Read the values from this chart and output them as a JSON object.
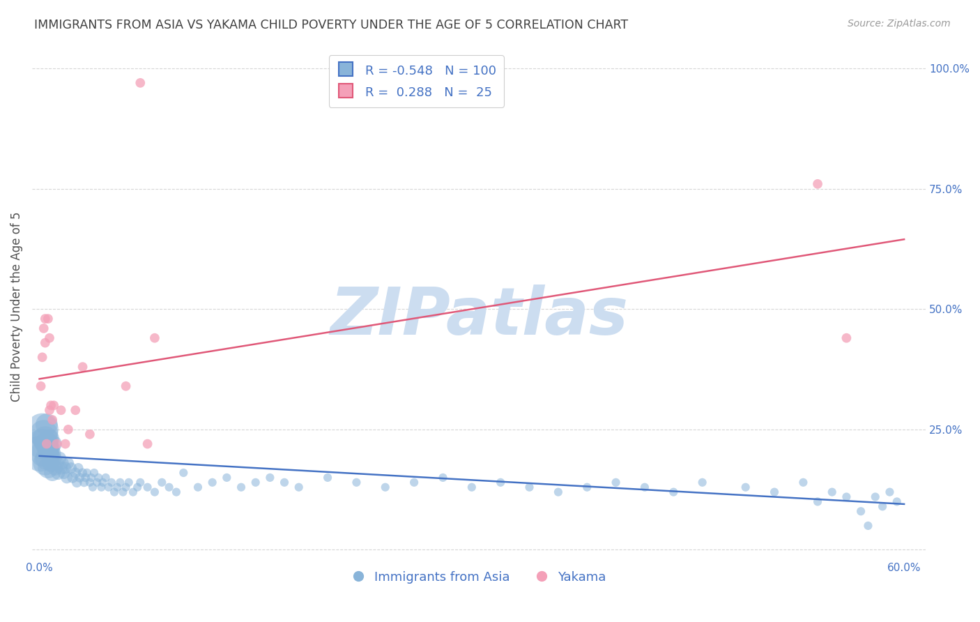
{
  "title": "IMMIGRANTS FROM ASIA VS YAKAMA CHILD POVERTY UNDER THE AGE OF 5 CORRELATION CHART",
  "source": "Source: ZipAtlas.com",
  "ylabel": "Child Poverty Under the Age of 5",
  "xlim": [
    -0.005,
    0.615
  ],
  "ylim": [
    -0.02,
    1.03
  ],
  "ytick_vals": [
    0.0,
    0.25,
    0.5,
    0.75,
    1.0
  ],
  "ytick_labels": [
    "",
    "25.0%",
    "50.0%",
    "75.0%",
    "100.0%"
  ],
  "xtick_vals": [
    0.0,
    0.1,
    0.2,
    0.3,
    0.4,
    0.5,
    0.6
  ],
  "xtick_labels": [
    "0.0%",
    "",
    "",
    "",
    "",
    "",
    "60.0%"
  ],
  "blue_R": -0.548,
  "blue_N": 100,
  "pink_R": 0.288,
  "pink_N": 25,
  "blue_color": "#89b4d9",
  "pink_color": "#f4a0b8",
  "blue_line_color": "#4472c4",
  "pink_line_color": "#e05878",
  "legend_label_blue": "Immigrants from Asia",
  "legend_label_pink": "Yakama",
  "watermark": "ZIPatlas",
  "watermark_color": "#ccddf0",
  "background_color": "#ffffff",
  "title_color": "#404040",
  "axis_label_color": "#505050",
  "tick_color": "#4472c4",
  "grid_color": "#cccccc",
  "blue_line_x": [
    0.0,
    0.6
  ],
  "blue_line_y": [
    0.195,
    0.095
  ],
  "pink_line_x": [
    0.0,
    0.6
  ],
  "pink_line_y": [
    0.355,
    0.645
  ],
  "blue_scatter_x": [
    0.001,
    0.002,
    0.002,
    0.003,
    0.003,
    0.004,
    0.004,
    0.005,
    0.005,
    0.005,
    0.006,
    0.006,
    0.007,
    0.007,
    0.008,
    0.008,
    0.009,
    0.009,
    0.01,
    0.01,
    0.011,
    0.012,
    0.013,
    0.014,
    0.015,
    0.016,
    0.017,
    0.018,
    0.019,
    0.02,
    0.022,
    0.023,
    0.025,
    0.026,
    0.027,
    0.028,
    0.03,
    0.031,
    0.032,
    0.033,
    0.035,
    0.036,
    0.037,
    0.038,
    0.04,
    0.041,
    0.043,
    0.044,
    0.046,
    0.048,
    0.05,
    0.052,
    0.054,
    0.056,
    0.058,
    0.06,
    0.062,
    0.065,
    0.068,
    0.07,
    0.075,
    0.08,
    0.085,
    0.09,
    0.095,
    0.1,
    0.11,
    0.12,
    0.13,
    0.14,
    0.15,
    0.16,
    0.17,
    0.18,
    0.2,
    0.22,
    0.24,
    0.26,
    0.28,
    0.3,
    0.32,
    0.34,
    0.36,
    0.38,
    0.4,
    0.42,
    0.44,
    0.46,
    0.49,
    0.51,
    0.53,
    0.54,
    0.55,
    0.56,
    0.57,
    0.575,
    0.58,
    0.585,
    0.59,
    0.595
  ],
  "blue_scatter_y": [
    0.2,
    0.25,
    0.22,
    0.24,
    0.2,
    0.23,
    0.18,
    0.22,
    0.19,
    0.26,
    0.21,
    0.17,
    0.23,
    0.2,
    0.21,
    0.18,
    0.2,
    0.16,
    0.22,
    0.19,
    0.17,
    0.18,
    0.16,
    0.19,
    0.17,
    0.18,
    0.16,
    0.17,
    0.15,
    0.18,
    0.17,
    0.15,
    0.16,
    0.14,
    0.17,
    0.15,
    0.16,
    0.14,
    0.15,
    0.16,
    0.14,
    0.15,
    0.13,
    0.16,
    0.14,
    0.15,
    0.13,
    0.14,
    0.15,
    0.13,
    0.14,
    0.12,
    0.13,
    0.14,
    0.12,
    0.13,
    0.14,
    0.12,
    0.13,
    0.14,
    0.13,
    0.12,
    0.14,
    0.13,
    0.12,
    0.16,
    0.13,
    0.14,
    0.15,
    0.13,
    0.14,
    0.15,
    0.14,
    0.13,
    0.15,
    0.14,
    0.13,
    0.14,
    0.15,
    0.13,
    0.14,
    0.13,
    0.12,
    0.13,
    0.14,
    0.13,
    0.12,
    0.14,
    0.13,
    0.12,
    0.14,
    0.1,
    0.12,
    0.11,
    0.08,
    0.05,
    0.11,
    0.09,
    0.12,
    0.1
  ],
  "blue_scatter_size": [
    400,
    320,
    280,
    250,
    220,
    200,
    180,
    170,
    160,
    150,
    140,
    130,
    120,
    110,
    100,
    95,
    90,
    85,
    80,
    75,
    70,
    65,
    60,
    55,
    52,
    50,
    48,
    45,
    43,
    40,
    38,
    36,
    34,
    32,
    30,
    28,
    26,
    25,
    24,
    23,
    22,
    22,
    22,
    22,
    22,
    22,
    22,
    22,
    22,
    22,
    22,
    22,
    22,
    22,
    22,
    22,
    22,
    22,
    22,
    22,
    22,
    22,
    22,
    22,
    22,
    22,
    22,
    22,
    22,
    22,
    22,
    22,
    22,
    22,
    22,
    22,
    22,
    22,
    22,
    22,
    22,
    22,
    22,
    22,
    22,
    22,
    22,
    22,
    22,
    22,
    22,
    22,
    22,
    22,
    22,
    22,
    22,
    22,
    22,
    22
  ],
  "pink_scatter_x": [
    0.001,
    0.002,
    0.003,
    0.004,
    0.004,
    0.005,
    0.006,
    0.007,
    0.007,
    0.008,
    0.009,
    0.01,
    0.012,
    0.015,
    0.018,
    0.02,
    0.025,
    0.03,
    0.035,
    0.06,
    0.07,
    0.075,
    0.08,
    0.54,
    0.56
  ],
  "pink_scatter_y": [
    0.34,
    0.4,
    0.46,
    0.48,
    0.43,
    0.22,
    0.48,
    0.44,
    0.29,
    0.3,
    0.27,
    0.3,
    0.22,
    0.29,
    0.22,
    0.25,
    0.29,
    0.38,
    0.24,
    0.34,
    0.97,
    0.22,
    0.44,
    0.76,
    0.44
  ],
  "pink_scatter_size": [
    28,
    28,
    28,
    28,
    28,
    28,
    28,
    28,
    28,
    28,
    28,
    28,
    28,
    28,
    28,
    28,
    28,
    28,
    28,
    28,
    28,
    28,
    28,
    28,
    28
  ]
}
